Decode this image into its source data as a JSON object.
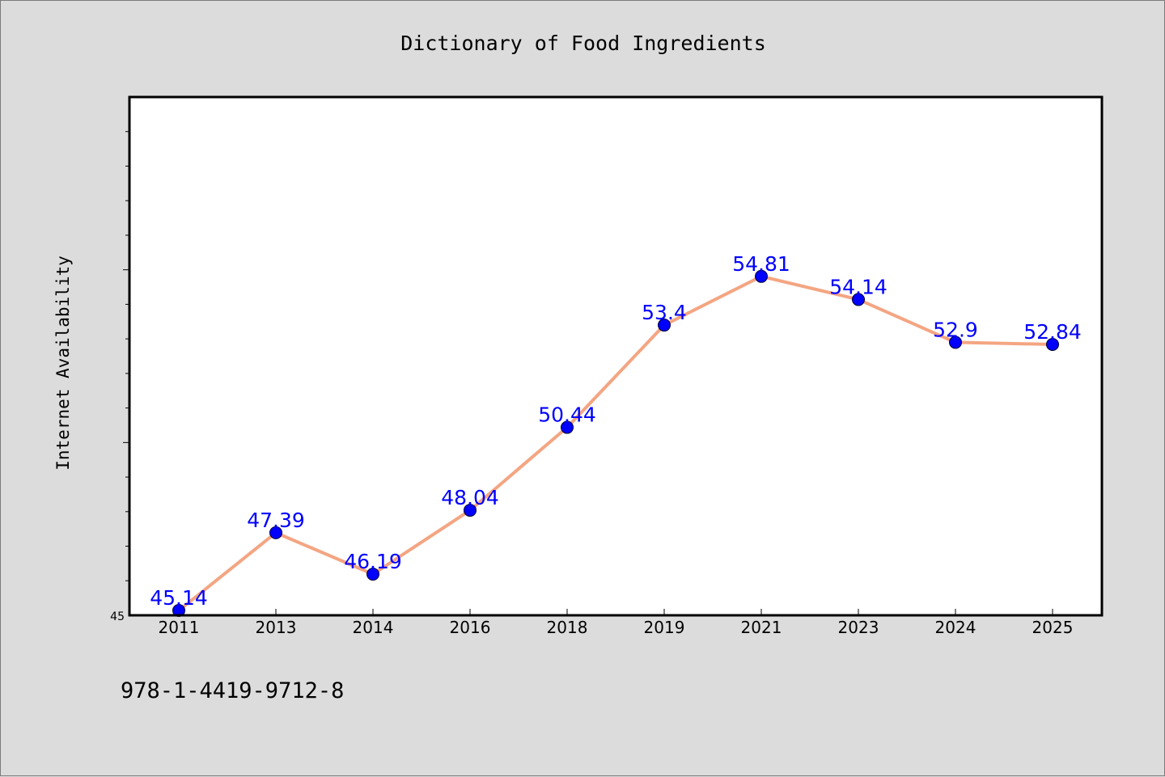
{
  "chart_data": {
    "type": "line",
    "title": "Dictionary of Food Ingredients",
    "xlabel": "",
    "ylabel": "Internet Availability",
    "categories": [
      "2011",
      "2013",
      "2014",
      "2016",
      "2018",
      "2019",
      "2021",
      "2023",
      "2024",
      "2025"
    ],
    "series": [
      {
        "values": [
          45.14,
          47.39,
          46.19,
          48.04,
          50.44,
          53.4,
          54.81,
          54.14,
          52.9,
          52.84
        ]
      }
    ],
    "data_labels": [
      "45.14",
      "47.39",
      "46.19",
      "48.04",
      "50.44",
      "53.4",
      "54.81",
      "54.14",
      "52.9",
      "52.84"
    ],
    "ylim": [
      45,
      60
    ],
    "y_tick_labels": [
      "45"
    ],
    "grid": false,
    "colors": {
      "line": "#f4a582",
      "marker": "#0000ff",
      "data_label": "#0000ff",
      "plot_background": "#ffffff",
      "figure_background": "#dcdcdc"
    }
  },
  "footer": {
    "isbn": "978-1-4419-9712-8"
  }
}
